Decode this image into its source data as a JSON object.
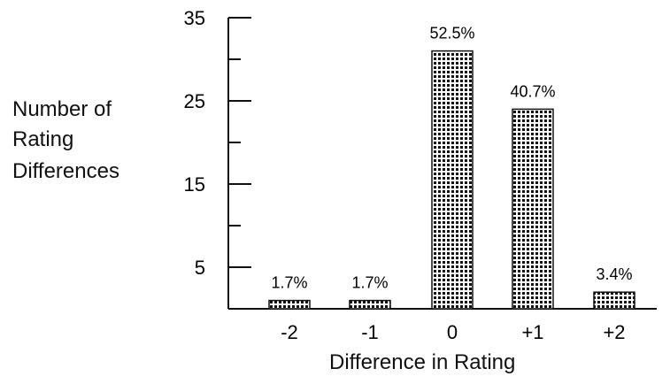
{
  "chart_data": {
    "type": "bar",
    "title": "",
    "ylabel_lines": [
      "Number of",
      "Rating",
      "Differences"
    ],
    "xlabel": "Difference in Rating",
    "categories": [
      "-2",
      "-1",
      "0",
      "+1",
      "+2"
    ],
    "values": [
      1,
      1,
      31,
      24,
      2
    ],
    "data_labels": [
      "1.7%",
      "1.7%",
      "52.5%",
      "40.7%",
      "3.4%"
    ],
    "yticks": [
      5,
      15,
      25,
      35
    ],
    "ylim": [
      0,
      35
    ],
    "grid": false,
    "bar_pattern": "checkered"
  }
}
